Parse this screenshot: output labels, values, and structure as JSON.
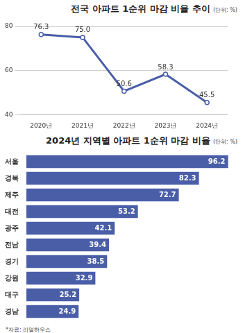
{
  "chart_data": [
    {
      "type": "line",
      "title": "전국 아파트 1순위 마감 비율 추이",
      "subtitle": "(단위: %)",
      "categories": [
        "2020년",
        "2021년",
        "2022년",
        "2023년",
        "2024년"
      ],
      "values": [
        76.3,
        75.0,
        50.6,
        58.3,
        45.5
      ],
      "value_labels": [
        "76.3",
        "75.0",
        "50.6",
        "58.3",
        "45.5"
      ],
      "color": "#4a5ea8",
      "marker": "circle",
      "ylim": [
        40,
        80
      ],
      "yticks": [
        40,
        60,
        80
      ],
      "grid": true,
      "data_labels": true
    },
    {
      "type": "bar",
      "title": "2024년 지역별 아파트 1순위 마감 비율",
      "subtitle": "(단위: %)",
      "orientation": "horizontal",
      "categories": [
        "서울",
        "경북",
        "제주",
        "대전",
        "광주",
        "전남",
        "경기",
        "강원",
        "대구",
        "경남"
      ],
      "values": [
        96.2,
        82.3,
        72.7,
        53.2,
        42.1,
        39.4,
        38.5,
        32.9,
        25.2,
        24.9
      ],
      "color": "#4a5ea8",
      "xlim": [
        0,
        100
      ],
      "grid": false,
      "data_labels": true,
      "tick_labels": "y"
    }
  ],
  "source": "*자료: 리얼하우스"
}
